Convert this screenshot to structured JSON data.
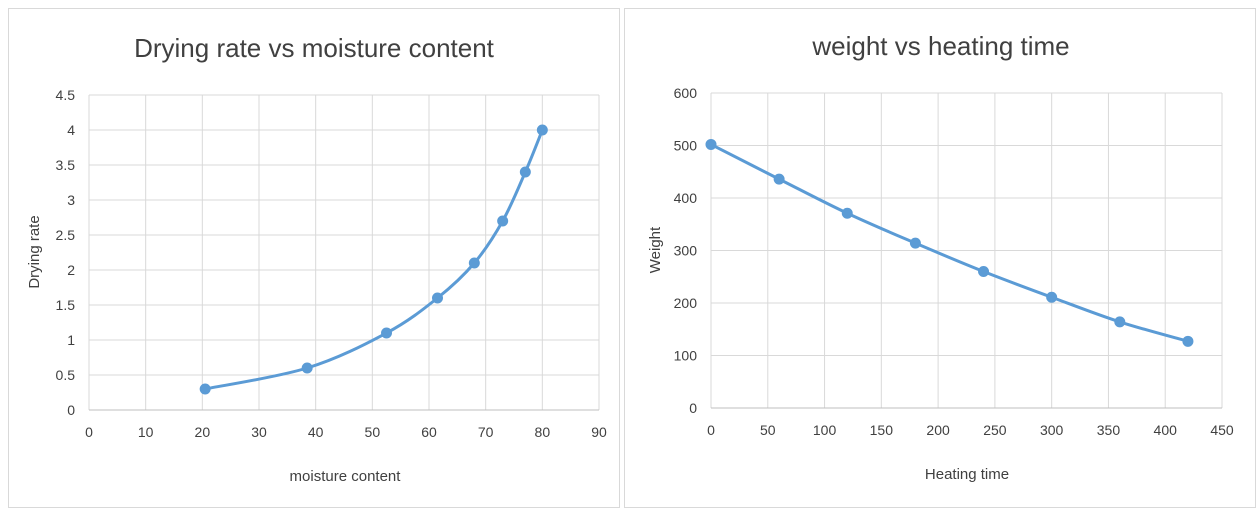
{
  "colors": {
    "series": "#5b9bd5",
    "grid": "#d9d9d9",
    "text": "#404040"
  },
  "chart_data": [
    {
      "type": "scatter",
      "title": "Drying rate vs moisture content",
      "xlabel": "moisture content",
      "ylabel": "Drying rate",
      "xlim": [
        0,
        90
      ],
      "ylim": [
        0,
        4.5
      ],
      "xticks": [
        0,
        10,
        20,
        30,
        40,
        50,
        60,
        70,
        80,
        90
      ],
      "yticks": [
        0,
        0.5,
        1,
        1.5,
        2,
        2.5,
        3,
        3.5,
        4,
        4.5
      ],
      "grid": "vertical and horizontal",
      "line_style": "smoothed line with markers",
      "series": [
        {
          "x": [
            20.5,
            38.5,
            52.5,
            61.5,
            68.0,
            73.0,
            77.0,
            80.0
          ],
          "y": [
            0.3,
            0.6,
            1.1,
            1.6,
            2.1,
            2.7,
            3.4,
            4.0
          ]
        }
      ]
    },
    {
      "type": "scatter",
      "title": "weight vs heating time",
      "xlabel": "Heating time",
      "ylabel": "Weight",
      "xlim": [
        0,
        450
      ],
      "ylim": [
        0,
        600
      ],
      "xticks": [
        0,
        50,
        100,
        150,
        200,
        250,
        300,
        350,
        400,
        450
      ],
      "yticks": [
        0,
        100,
        200,
        300,
        400,
        500,
        600
      ],
      "grid": "vertical and horizontal",
      "line_style": "smoothed line with markers",
      "series": [
        {
          "x": [
            0,
            60,
            120,
            180,
            240,
            300,
            360,
            420
          ],
          "y": [
            502,
            436,
            371,
            314,
            260,
            211,
            164,
            127
          ]
        }
      ]
    }
  ]
}
